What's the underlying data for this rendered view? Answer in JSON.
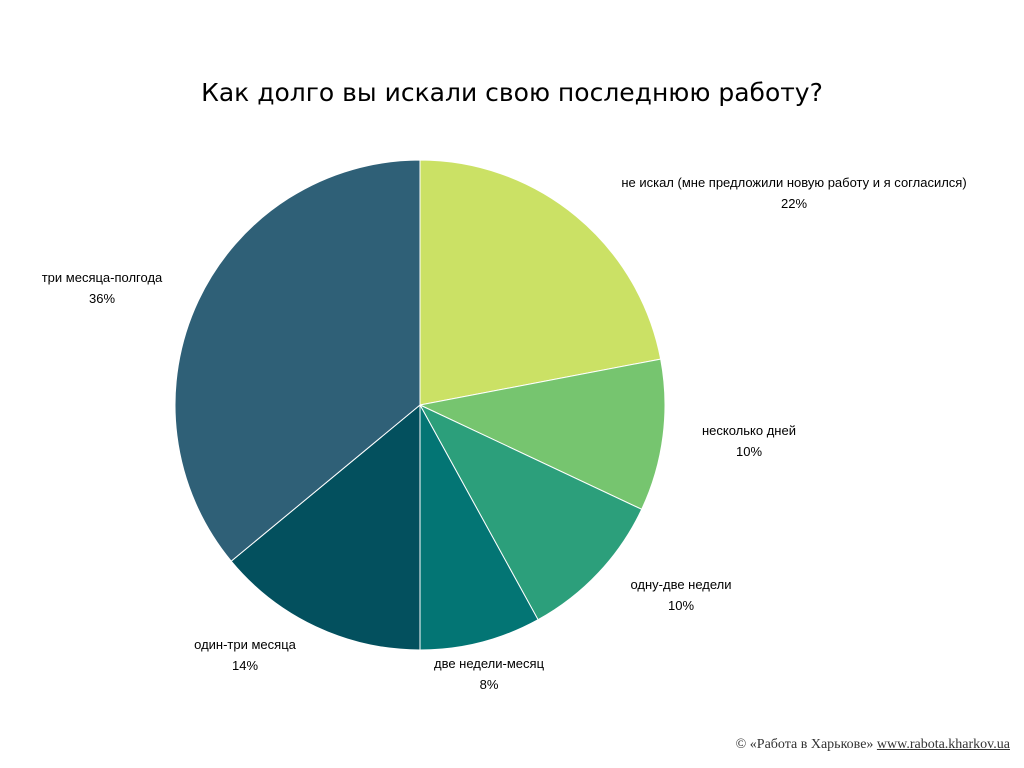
{
  "chart_data": {
    "type": "pie",
    "title": "Как долго вы искали свою последнюю работу?",
    "slices": [
      {
        "label": "не искал (мне предложили новую работу и я согласился)",
        "value": 22,
        "value_label": "22%",
        "color": "#cbe165"
      },
      {
        "label": "несколько дней",
        "value": 10,
        "value_label": "10%",
        "color": "#76c56f"
      },
      {
        "label": "одну-две недели",
        "value": 10,
        "value_label": "10%",
        "color": "#2c9f7b"
      },
      {
        "label": "две недели-месяц",
        "value": 8,
        "value_label": "8%",
        "color": "#037574"
      },
      {
        "label": "один-три месяца",
        "value": 14,
        "value_label": "14%",
        "color": "#03505e"
      },
      {
        "label": "три месяца-полгода",
        "value": 36,
        "value_label": "36%",
        "color": "#2f6077"
      }
    ]
  },
  "footer": {
    "copyright": "© «Работа в Харькове»",
    "url": "www.rabota.kharkov.ua"
  }
}
